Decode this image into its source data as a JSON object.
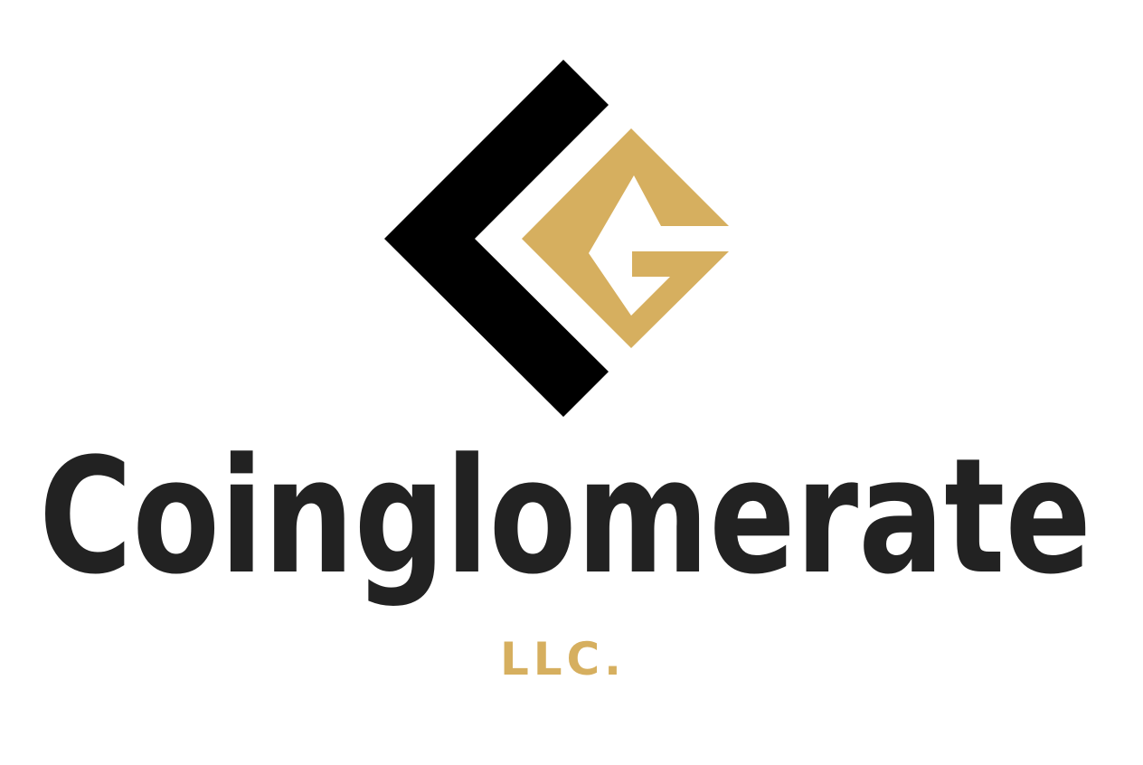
{
  "logo": {
    "name": "Coinglomerate",
    "suffix": "LLC."
  }
}
